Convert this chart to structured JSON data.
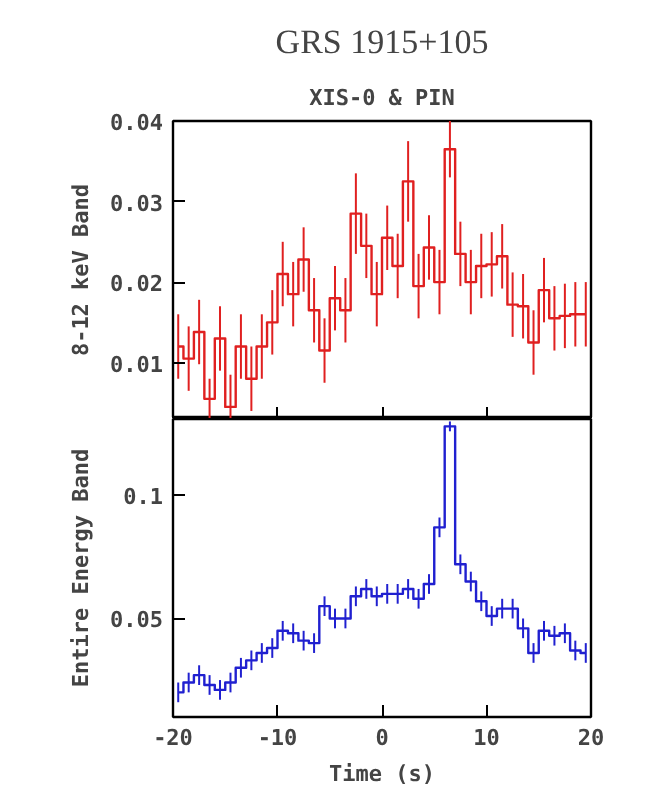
{
  "chart_data": [
    {
      "type": "step",
      "title": "GRS 1915+105",
      "subtitle": "XIS-0 & PIN",
      "ylabel": "8-12 keV Band",
      "x": [
        -19.5,
        -18.5,
        -17.5,
        -16.5,
        -15.5,
        -14.5,
        -13.5,
        -12.5,
        -11.5,
        -10.5,
        -9.5,
        -8.5,
        -7.5,
        -6.5,
        -5.5,
        -4.5,
        -3.5,
        -2.5,
        -1.5,
        -0.5,
        0.5,
        1.5,
        2.5,
        3.5,
        4.5,
        5.5,
        6.5,
        7.5,
        8.5,
        9.5,
        10.5,
        11.5,
        12.5,
        13.5,
        14.5,
        15.5,
        16.5,
        17.5,
        18.5,
        19.5
      ],
      "series": [
        {
          "color": "#e02020",
          "values": [
            0.012,
            0.0105,
            0.0138,
            0.0055,
            0.013,
            0.0045,
            0.012,
            0.008,
            0.012,
            0.015,
            0.021,
            0.0185,
            0.0228,
            0.0165,
            0.0115,
            0.018,
            0.0165,
            0.0285,
            0.0245,
            0.0185,
            0.0255,
            0.022,
            0.0325,
            0.0195,
            0.0243,
            0.02,
            0.0365,
            0.0235,
            0.02,
            0.022,
            0.0222,
            0.0232,
            0.0172,
            0.017,
            0.0125,
            0.019,
            0.0155,
            0.0158,
            0.016,
            0.016
          ],
          "errors": [
            0.004,
            0.004,
            0.004,
            0.0025,
            0.004,
            [
              0.003,
              0.0085
            ],
            0.004,
            0.004,
            0.004,
            0.004,
            0.004,
            0.004,
            0.004,
            0.004,
            0.004,
            0.004,
            0.004,
            0.005,
            0.004,
            0.004,
            0.004,
            0.004,
            0.005,
            0.004,
            0.004,
            0.004,
            0.0035,
            0.004,
            0.004,
            0.004,
            0.004,
            0.004,
            0.004,
            0.004,
            0.004,
            0.004,
            0.004,
            0.004,
            0.004,
            0.004
          ]
        }
      ],
      "xlim": [
        -20,
        20
      ],
      "xticks": [
        -20,
        -10,
        0,
        10,
        20
      ],
      "ylim": [
        0.003,
        0.04
      ],
      "yticks": [
        0.01,
        0.02,
        0.03,
        0.04
      ],
      "tick_labels": "y",
      "grid": false
    },
    {
      "type": "step",
      "xlabel": "Time (s)",
      "ylabel": "Entire Energy Band",
      "x": [
        -19.5,
        -18.5,
        -17.5,
        -16.5,
        -15.5,
        -14.5,
        -13.5,
        -12.5,
        -11.5,
        -10.5,
        -9.5,
        -8.5,
        -7.5,
        -6.5,
        -5.5,
        -4.5,
        -3.5,
        -2.5,
        -1.5,
        -0.5,
        0.5,
        1.5,
        2.5,
        3.5,
        4.5,
        5.5,
        6.5,
        7.5,
        8.5,
        9.5,
        10.5,
        11.5,
        12.5,
        13.5,
        14.5,
        15.5,
        16.5,
        17.5,
        18.5,
        19.5
      ],
      "series": [
        {
          "color": "#2020d0",
          "values": [
            0.02,
            0.024,
            0.027,
            0.023,
            0.021,
            0.024,
            0.03,
            0.033,
            0.036,
            0.038,
            0.045,
            0.044,
            0.041,
            0.04,
            0.055,
            0.05,
            0.05,
            0.059,
            0.062,
            0.059,
            0.06,
            0.06,
            0.062,
            0.058,
            0.064,
            0.087,
            0.128,
            0.072,
            0.065,
            0.057,
            0.051,
            0.054,
            0.054,
            0.046,
            0.036,
            0.045,
            0.043,
            0.044,
            0.037,
            0.036
          ],
          "errors": [
            0.004,
            0.004,
            0.004,
            0.004,
            0.004,
            0.004,
            0.004,
            0.004,
            0.004,
            0.004,
            0.004,
            0.004,
            0.004,
            0.004,
            0.004,
            0.004,
            0.004,
            0.004,
            0.004,
            0.004,
            0.004,
            0.004,
            0.004,
            0.004,
            0.004,
            0.004,
            0.002,
            0.004,
            0.004,
            0.004,
            0.004,
            0.004,
            0.004,
            0.004,
            0.004,
            0.004,
            0.004,
            0.004,
            0.004,
            0.004
          ]
        }
      ],
      "xlim": [
        -20,
        20
      ],
      "xticks": [
        -20,
        -10,
        0,
        10,
        20
      ],
      "ylim": [
        0.01,
        0.131
      ],
      "yticks": [
        0.05,
        0.1
      ],
      "grid": false
    }
  ]
}
